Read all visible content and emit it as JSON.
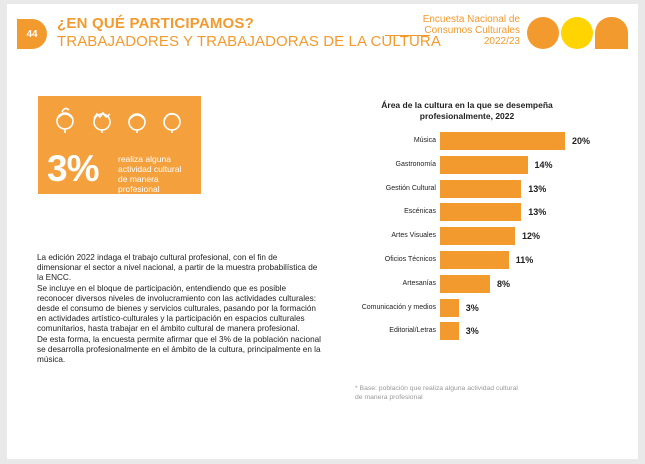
{
  "header": {
    "page_number": "44",
    "title_line1": "¿EN QUÉ PARTICIPAMOS?",
    "title_line2": "TRABAJADORES Y TRABAJADORAS DE LA CULTURA",
    "survey_line1": "Encuesta Nacional de",
    "survey_line2": "Consumos Culturales",
    "survey_line3": "2022/23"
  },
  "stat": {
    "value": "3%",
    "text_line1": "realiza alguna",
    "text_line2": "actividad cultural",
    "text_line3": "de manera profesional",
    "icons": [
      "person-icon",
      "person-icon",
      "person-icon",
      "person-icon"
    ]
  },
  "body": {
    "p1": "La edición 2022 indaga el trabajo cultural profesional, con el fin de dimensionar el sector a nivel nacional, a partir de la muestra probabilística de la ENCC.",
    "p2": "Se incluye en el bloque de participación, entendiendo que es posible reconocer diversos niveles de involucramiento con las actividades culturales: desde el consumo de bienes y servicios culturales, pasando por la formación en actividades artístico-culturales y la participación en espacios culturales comunitarios, hasta trabajar en el ámbito cultural de manera profesional.",
    "p3": "De esta forma, la encuesta permite afirmar que el 3% de la población nacional se desarrolla profesionalmente en el ámbito de la cultura, principalmente en la música."
  },
  "chart_data": {
    "type": "bar",
    "orientation": "horizontal",
    "title_line1": "Área de la cultura en la que se desempeña",
    "title_line2": "profesionalmente, 2022",
    "categories": [
      "Música",
      "Gastronomía",
      "Gestión Cultural",
      "Escénicas",
      "Artes Visuales",
      "Oficios Técnicos",
      "Artesanías",
      "Comunicación y medios",
      "Editorial/Letras"
    ],
    "values": [
      20,
      14,
      13,
      13,
      12,
      11,
      8,
      3,
      3
    ],
    "value_labels": [
      "20%",
      "14%",
      "13%",
      "13%",
      "12%",
      "11%",
      "8%",
      "3%",
      "3%"
    ],
    "xlim": [
      0,
      20
    ],
    "bar_color": "#f39a2e",
    "grid": false
  },
  "footnote": "* Base: población que realiza alguna actividad cultural de manera profesional",
  "colors": {
    "accent": "#f39a2e",
    "yellow": "#ffd400"
  }
}
